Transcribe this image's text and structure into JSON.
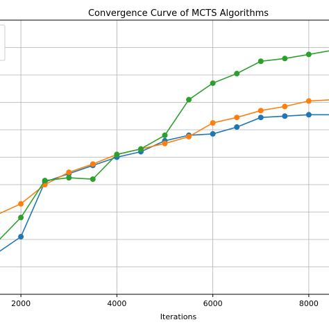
{
  "chart_data": {
    "type": "line",
    "title": "Convergence Curve of MCTS Algorithms",
    "xlabel": "Iterations",
    "ylabel": "",
    "xlim": [
      1550,
      8450
    ],
    "ylim": [
      0,
      1
    ],
    "x_ticks": [
      2000,
      4000,
      6000,
      8000
    ],
    "x_tick_labels": [
      "2000",
      "4000",
      "6000",
      "8000"
    ],
    "grid": true,
    "legend": "top-left",
    "x": [
      1500,
      2000,
      2500,
      3000,
      3500,
      4000,
      4500,
      5000,
      5500,
      6000,
      6500,
      7000,
      7500,
      8000,
      8500
    ],
    "series": [
      {
        "color": "#1f77b4",
        "values": [
          0.15,
          0.21,
          0.41,
          0.44,
          0.47,
          0.5,
          0.52,
          0.56,
          0.58,
          0.585,
          0.61,
          0.645,
          0.65,
          0.655,
          0.655
        ]
      },
      {
        "color": "#ff7f0e",
        "values": [
          0.29,
          0.33,
          0.4,
          0.445,
          0.475,
          0.51,
          0.53,
          0.55,
          0.575,
          0.625,
          0.645,
          0.67,
          0.685,
          0.705,
          0.71
        ]
      },
      {
        "color": "#2ca02c",
        "values": [
          0.19,
          0.28,
          0.415,
          0.425,
          0.42,
          0.51,
          0.53,
          0.58,
          0.71,
          0.77,
          0.805,
          0.85,
          0.86,
          0.875,
          0.89
        ]
      }
    ]
  }
}
